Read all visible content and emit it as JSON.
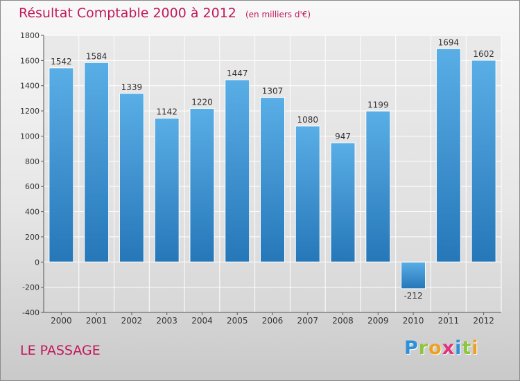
{
  "chart_data": {
    "type": "bar",
    "title": "Résultat Comptable 2000 à 2012",
    "unit_note": "(en milliers d'€)",
    "categories": [
      "2000",
      "2001",
      "2002",
      "2003",
      "2004",
      "2005",
      "2006",
      "2007",
      "2008",
      "2009",
      "2010",
      "2011",
      "2012"
    ],
    "values": [
      1542,
      1584,
      1339,
      1142,
      1220,
      1447,
      1307,
      1080,
      947,
      1199,
      -212,
      1694,
      1602
    ],
    "value_labels": [
      "1542",
      "1584",
      "1339",
      "1142",
      "1220",
      "1447",
      "1307",
      "1080",
      "947",
      "1199",
      "-212",
      "1694",
      "1602"
    ],
    "yticks": [
      -400,
      -200,
      0,
      200,
      400,
      600,
      800,
      1000,
      1200,
      1400,
      1600,
      1800
    ],
    "ytick_labels": [
      "-400",
      "-200",
      "0",
      "200",
      "400",
      "600",
      "800",
      "1000",
      "1200",
      "1400",
      "1600",
      "1800"
    ],
    "ylim": [
      -400,
      1800
    ],
    "xlabel": "",
    "ylabel": "",
    "grid": true,
    "colors": {
      "bar_light": "#5aaee6",
      "bar_dark": "#2577b8",
      "title": "#c2185b",
      "grid": "#ffffff",
      "axis": "#555555"
    }
  },
  "footer": {
    "commune": "LE PASSAGE",
    "brand_letters": [
      {
        "ch": "P",
        "color": "#2f8fd8"
      },
      {
        "ch": "r",
        "color": "#8cc63f"
      },
      {
        "ch": "o",
        "color": "#f0a020"
      },
      {
        "ch": "x",
        "color": "#e2327a"
      },
      {
        "ch": "i",
        "color": "#2f8fd8"
      },
      {
        "ch": "t",
        "color": "#8cc63f"
      },
      {
        "ch": "i",
        "color": "#f0a020"
      }
    ]
  }
}
